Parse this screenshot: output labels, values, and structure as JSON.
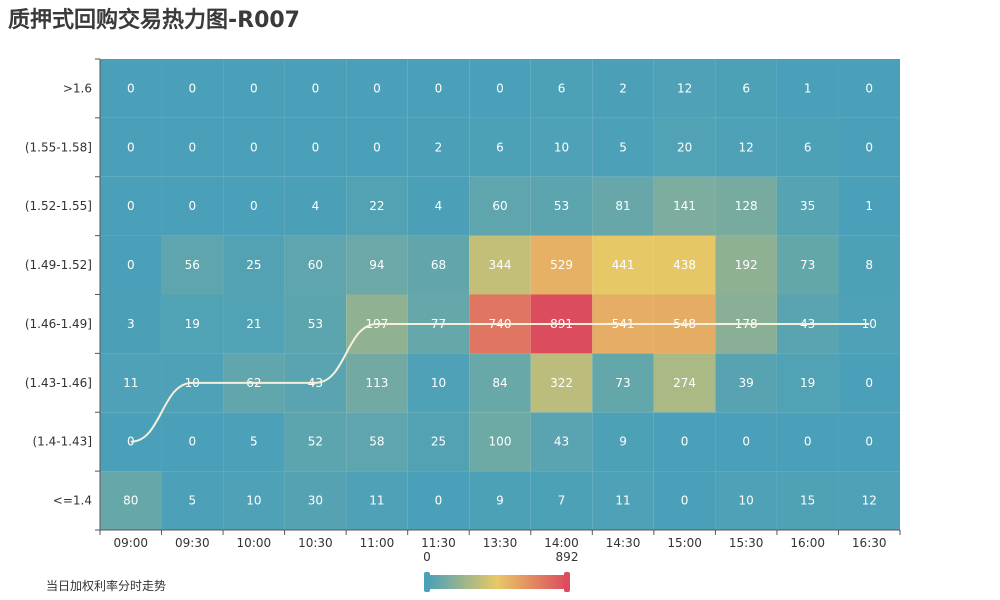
{
  "title": "质押式回购交易热力图-R007",
  "legend_note": "当日加权利率分时走势",
  "colors": {
    "low": "#4aa0b8",
    "mid": "#e8c865",
    "high": "#dc4c5f",
    "line": "#f5f0dc"
  },
  "chart_data": {
    "type": "heatmap",
    "title": "质押式回购交易热力图-R007",
    "x_categories": [
      "09:00",
      "09:30",
      "10:00",
      "10:30",
      "11:00",
      "11:30",
      "13:30",
      "14:00",
      "14:30",
      "15:00",
      "15:30",
      "16:00",
      "16:30"
    ],
    "y_categories": [
      "<=1.4",
      "(1.4-1.43]",
      "(1.43-1.46]",
      "(1.46-1.49]",
      "(1.49-1.52]",
      "(1.52-1.55]",
      "(1.55-1.58]",
      ">1.6"
    ],
    "values": [
      [
        80,
        5,
        10,
        30,
        11,
        0,
        9,
        7,
        11,
        0,
        10,
        15,
        12
      ],
      [
        0,
        0,
        5,
        52,
        58,
        25,
        100,
        43,
        9,
        0,
        0,
        0,
        0
      ],
      [
        11,
        10,
        62,
        43,
        113,
        10,
        84,
        322,
        73,
        274,
        39,
        19,
        0
      ],
      [
        3,
        19,
        21,
        53,
        197,
        77,
        740,
        891,
        541,
        548,
        178,
        43,
        10
      ],
      [
        0,
        56,
        25,
        60,
        94,
        68,
        344,
        529,
        441,
        438,
        192,
        73,
        8
      ],
      [
        0,
        0,
        0,
        4,
        22,
        4,
        60,
        53,
        81,
        141,
        128,
        35,
        1
      ],
      [
        0,
        0,
        0,
        0,
        0,
        2,
        6,
        10,
        5,
        20,
        12,
        6,
        0
      ],
      [
        0,
        0,
        0,
        0,
        0,
        0,
        0,
        6,
        2,
        12,
        6,
        1,
        0
      ]
    ],
    "visual_map": {
      "min": 0,
      "max": 892
    },
    "trend_line": {
      "name": "当日加权利率分时走势",
      "y_index": [
        1,
        2,
        2,
        2,
        3,
        3,
        3,
        3,
        3,
        3,
        3,
        3,
        3
      ]
    }
  }
}
